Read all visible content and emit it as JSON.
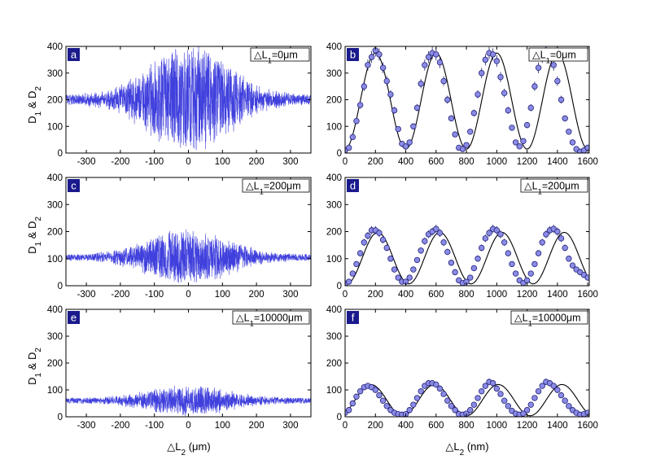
{
  "figure": {
    "left_ylabel": "D1 & D2",
    "left_xlabel": "△L2 (μm)",
    "right_xlabel": "△L2 (nm)"
  },
  "chart_data": [
    {
      "id": "a",
      "type": "line",
      "panel_label": "a",
      "annotation": "△L1=0μm",
      "xlabel": "",
      "ylabel": "D1 & D2",
      "xlim": [
        -360,
        360
      ],
      "ylim": [
        0,
        400
      ],
      "xticks": [
        -300,
        -200,
        -100,
        0,
        100,
        200,
        300
      ],
      "yticks": [
        0,
        100,
        200,
        300,
        400
      ],
      "series": [
        {
          "color": "#2b2bd9",
          "baseline": 200,
          "envelope_peak_amplitude": 190,
          "envelope_width": 120,
          "noise_amplitude": 18
        }
      ]
    },
    {
      "id": "b",
      "type": "scatter",
      "panel_label": "b",
      "annotation": "△L1=0μm",
      "xlabel": "",
      "ylabel": "",
      "xlim": [
        0,
        1610
      ],
      "ylim": [
        0,
        400
      ],
      "xticks": [
        0,
        200,
        400,
        600,
        800,
        1000,
        1200,
        1400,
        1600
      ],
      "yticks": [
        0,
        100,
        200,
        300,
        400
      ],
      "fit": {
        "color": "#000000",
        "mean": 195,
        "amplitude": 180,
        "period": 400,
        "phase_x": 200
      },
      "x": [
        0,
        25,
        50,
        75,
        100,
        125,
        150,
        175,
        200,
        225,
        250,
        275,
        300,
        325,
        350,
        375,
        400,
        425,
        450,
        475,
        500,
        525,
        550,
        575,
        600,
        625,
        650,
        675,
        700,
        725,
        750,
        775,
        800,
        825,
        850,
        875,
        900,
        925,
        950,
        975,
        1000,
        1025,
        1050,
        1075,
        1100,
        1125,
        1150,
        1175,
        1200,
        1225,
        1250,
        1275,
        1300,
        1325,
        1350,
        1375,
        1400,
        1425,
        1450,
        1475,
        1500,
        1525,
        1550,
        1575,
        1600
      ],
      "y": [
        10,
        20,
        60,
        120,
        180,
        250,
        330,
        360,
        385,
        370,
        320,
        270,
        220,
        160,
        90,
        35,
        25,
        40,
        100,
        170,
        260,
        330,
        360,
        375,
        370,
        340,
        270,
        200,
        130,
        70,
        20,
        15,
        30,
        80,
        150,
        220,
        300,
        350,
        375,
        370,
        345,
        285,
        225,
        160,
        95,
        40,
        25,
        45,
        105,
        170,
        250,
        320,
        360,
        385,
        370,
        330,
        270,
        200,
        130,
        80,
        40,
        15,
        5,
        10,
        20
      ]
    },
    {
      "id": "c",
      "type": "line",
      "panel_label": "c",
      "annotation": "△L1=200μm",
      "xlabel": "",
      "ylabel": "D1 & D2",
      "xlim": [
        -360,
        360
      ],
      "ylim": [
        0,
        400
      ],
      "xticks": [
        -300,
        -200,
        -100,
        0,
        100,
        200,
        300
      ],
      "yticks": [
        0,
        100,
        200,
        300,
        400
      ],
      "series": [
        {
          "color": "#2b2bd9",
          "baseline": 105,
          "envelope_peak_amplitude": 95,
          "envelope_width": 120,
          "noise_amplitude": 12
        }
      ]
    },
    {
      "id": "d",
      "type": "scatter",
      "panel_label": "d",
      "annotation": "△L1=200μm",
      "xlabel": "",
      "ylabel": "",
      "xlim": [
        0,
        1610
      ],
      "ylim": [
        0,
        400
      ],
      "xticks": [
        0,
        200,
        400,
        600,
        800,
        1000,
        1200,
        1400,
        1600
      ],
      "yticks": [
        0,
        100,
        200,
        300,
        400
      ],
      "fit": {
        "color": "#000000",
        "mean": 102,
        "amplitude": 95,
        "period": 410,
        "phase_x": 215
      },
      "x": [
        0,
        25,
        50,
        75,
        100,
        125,
        150,
        175,
        200,
        225,
        250,
        275,
        300,
        325,
        350,
        375,
        400,
        425,
        450,
        475,
        500,
        525,
        550,
        575,
        600,
        625,
        650,
        675,
        700,
        725,
        750,
        775,
        800,
        825,
        850,
        875,
        900,
        925,
        950,
        975,
        1000,
        1025,
        1050,
        1075,
        1100,
        1125,
        1150,
        1175,
        1200,
        1225,
        1250,
        1275,
        1300,
        1325,
        1350,
        1375,
        1400,
        1425,
        1450,
        1475,
        1500,
        1525,
        1550,
        1575,
        1600
      ],
      "y": [
        8,
        15,
        45,
        80,
        120,
        160,
        185,
        205,
        205,
        195,
        170,
        140,
        100,
        60,
        30,
        15,
        15,
        30,
        60,
        95,
        130,
        165,
        190,
        200,
        210,
        195,
        160,
        125,
        85,
        50,
        20,
        10,
        15,
        30,
        65,
        100,
        140,
        175,
        195,
        210,
        205,
        190,
        160,
        120,
        80,
        45,
        20,
        10,
        20,
        45,
        80,
        120,
        160,
        190,
        205,
        210,
        200,
        175,
        140,
        100,
        75,
        60,
        50,
        40,
        30
      ]
    },
    {
      "id": "e",
      "type": "line",
      "panel_label": "e",
      "annotation": "△L1=10000μm",
      "xlabel": "△L2 (μm)",
      "ylabel": "D1 & D2",
      "xlim": [
        -360,
        360
      ],
      "ylim": [
        0,
        400
      ],
      "xticks": [
        -300,
        -200,
        -100,
        0,
        100,
        200,
        300
      ],
      "yticks": [
        0,
        100,
        200,
        300,
        400
      ],
      "series": [
        {
          "color": "#2b2bd9",
          "baseline": 60,
          "envelope_peak_amplitude": 50,
          "envelope_width": 120,
          "noise_amplitude": 10
        }
      ]
    },
    {
      "id": "f",
      "type": "scatter",
      "panel_label": "f",
      "annotation": "△L1=10000μm",
      "xlabel": "△L2 (nm)",
      "ylabel": "",
      "xlim": [
        0,
        1610
      ],
      "ylim": [
        0,
        400
      ],
      "xticks": [
        0,
        200,
        400,
        600,
        800,
        1000,
        1200,
        1400,
        1600
      ],
      "yticks": [
        0,
        100,
        200,
        300,
        400
      ],
      "fit": {
        "color": "#000000",
        "mean": 62,
        "amplitude": 58,
        "period": 420,
        "phase_x": 170
      },
      "x": [
        0,
        25,
        50,
        75,
        100,
        125,
        150,
        175,
        200,
        225,
        250,
        275,
        300,
        325,
        350,
        375,
        400,
        425,
        450,
        475,
        500,
        525,
        550,
        575,
        600,
        625,
        650,
        675,
        700,
        725,
        750,
        775,
        800,
        825,
        850,
        875,
        900,
        925,
        950,
        975,
        1000,
        1025,
        1050,
        1075,
        1100,
        1125,
        1150,
        1175,
        1200,
        1225,
        1250,
        1275,
        1300,
        1325,
        1350,
        1375,
        1400,
        1425,
        1450,
        1475,
        1500,
        1525,
        1550,
        1575,
        1600
      ],
      "y": [
        15,
        25,
        50,
        75,
        95,
        110,
        115,
        110,
        100,
        80,
        60,
        40,
        25,
        15,
        10,
        8,
        10,
        25,
        45,
        70,
        95,
        115,
        125,
        125,
        120,
        105,
        85,
        60,
        40,
        25,
        10,
        8,
        12,
        25,
        45,
        70,
        95,
        115,
        130,
        125,
        105,
        85,
        60,
        40,
        22,
        12,
        8,
        12,
        25,
        45,
        70,
        95,
        115,
        130,
        125,
        115,
        100,
        80,
        60,
        40,
        25,
        15,
        8,
        10,
        15
      ]
    }
  ]
}
